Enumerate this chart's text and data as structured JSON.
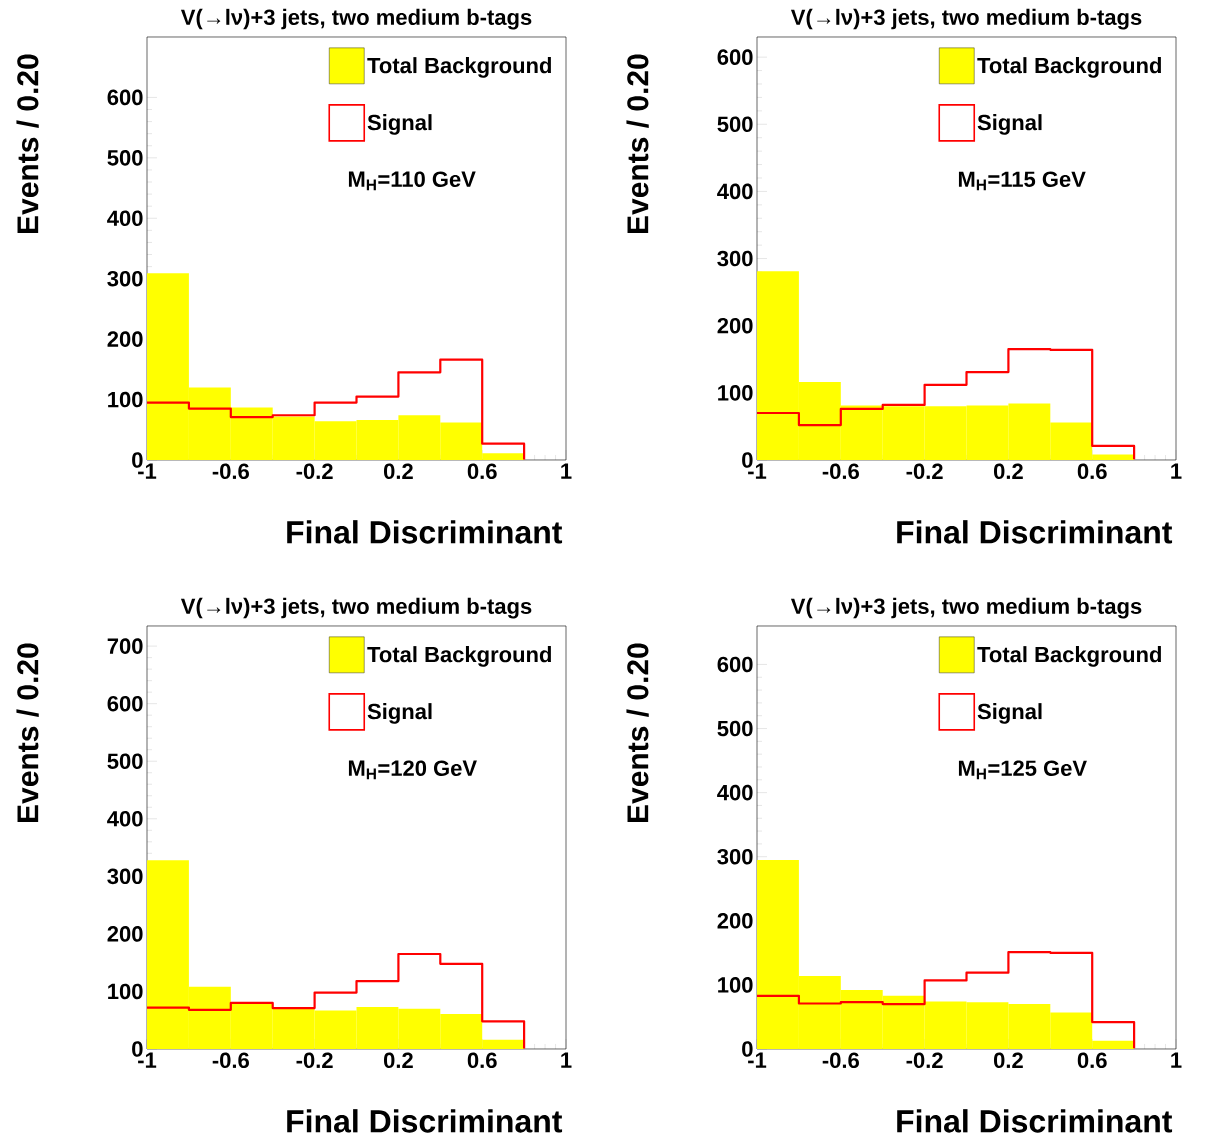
{
  "chart_data": [
    {
      "type": "histogram",
      "title": "V(→lν)+3 jets, two medium b-tags",
      "xlabel": "Final Discriminant",
      "ylabel": "Events / 0.20",
      "bins": [
        -1,
        -0.8,
        -0.6,
        -0.4,
        -0.2,
        0,
        0.2,
        0.4,
        0.6,
        0.8,
        1
      ],
      "series": [
        {
          "name": "Total Background",
          "type": "histogram",
          "color": "#ffff00",
          "values": [
            309,
            120,
            87,
            72,
            64,
            66,
            74,
            62,
            11,
            0
          ]
        },
        {
          "name": "Signal",
          "type": "step",
          "color": "#ff0000",
          "x": [
            -1,
            -0.8,
            -0.6,
            -0.4,
            -0.2,
            0,
            0.2,
            0.4,
            0.6,
            0.8
          ],
          "values": [
            95,
            85,
            71,
            74,
            95,
            105,
            145,
            166,
            27,
            1
          ]
        }
      ],
      "xlim": [
        -1,
        1
      ],
      "ylim": [
        0,
        700
      ],
      "xticks": [
        -1,
        -0.6,
        -0.2,
        0.2,
        0.6,
        1
      ],
      "yticks": [
        0,
        100,
        200,
        300,
        400,
        500,
        600
      ],
      "legend": "top right",
      "annotations": [
        "M$_{H}$=110 GeV"
      ]
    },
    {
      "type": "histogram",
      "title": "V(→lν)+3 jets, two medium b-tags",
      "xlabel": "Final Discriminant",
      "ylabel": "Events / 0.20",
      "bins": [
        -1,
        -0.8,
        -0.6,
        -0.4,
        -0.2,
        0,
        0.2,
        0.4,
        0.6,
        0.8,
        1
      ],
      "series": [
        {
          "name": "Total Background",
          "type": "histogram",
          "color": "#ffff00",
          "values": [
            281,
            116,
            81,
            80,
            80,
            81,
            84,
            56,
            8,
            0
          ]
        },
        {
          "name": "Signal",
          "type": "step",
          "color": "#ff0000",
          "x": [
            -1,
            -0.8,
            -0.6,
            -0.4,
            -0.2,
            0,
            0.2,
            0.4,
            0.6,
            0.8
          ],
          "values": [
            70,
            52,
            76,
            82,
            112,
            131,
            165,
            164,
            21,
            1
          ]
        }
      ],
      "xlim": [
        -1,
        1
      ],
      "ylim": [
        0,
        630
      ],
      "xticks": [
        -1,
        -0.6,
        -0.2,
        0.2,
        0.6,
        1
      ],
      "yticks": [
        0,
        100,
        200,
        300,
        400,
        500,
        600
      ],
      "legend": "top right",
      "annotations": [
        "M$_{H}$=115 GeV"
      ]
    },
    {
      "type": "histogram",
      "title": "V(→lν)+3 jets, two medium b-tags",
      "xlabel": "Final Discriminant",
      "ylabel": "Events / 0.20",
      "bins": [
        -1,
        -0.8,
        -0.6,
        -0.4,
        -0.2,
        0,
        0.2,
        0.4,
        0.6,
        0.8,
        1
      ],
      "series": [
        {
          "name": "Total Background",
          "type": "histogram",
          "color": "#ffff00",
          "values": [
            328,
            108,
            79,
            70,
            67,
            73,
            70,
            61,
            16,
            0
          ]
        },
        {
          "name": "Signal",
          "type": "step",
          "color": "#ff0000",
          "x": [
            -1,
            -0.8,
            -0.6,
            -0.4,
            -0.2,
            0,
            0.2,
            0.4,
            0.6,
            0.8
          ],
          "values": [
            72,
            68,
            80,
            71,
            98,
            118,
            165,
            148,
            48,
            1
          ]
        }
      ],
      "xlim": [
        -1,
        1
      ],
      "ylim": [
        0,
        735
      ],
      "xticks": [
        -1,
        -0.6,
        -0.2,
        0.2,
        0.6,
        1
      ],
      "yticks": [
        0,
        100,
        200,
        300,
        400,
        500,
        600,
        700
      ],
      "legend": "top right",
      "annotations": [
        "M$_{H}$=120 GeV"
      ]
    },
    {
      "type": "histogram",
      "title": "V(→lν)+3 jets, two medium b-tags",
      "xlabel": "Final Discriminant",
      "ylabel": "Events / 0.20",
      "bins": [
        -1,
        -0.8,
        -0.6,
        -0.4,
        -0.2,
        0,
        0.2,
        0.4,
        0.6,
        0.8,
        1
      ],
      "series": [
        {
          "name": "Total Background",
          "type": "histogram",
          "color": "#ffff00",
          "values": [
            295,
            114,
            92,
            83,
            74,
            73,
            70,
            57,
            13,
            0
          ]
        },
        {
          "name": "Signal",
          "type": "step",
          "color": "#ff0000",
          "x": [
            -1,
            -0.8,
            -0.6,
            -0.4,
            -0.2,
            0,
            0.2,
            0.4,
            0.6,
            0.8
          ],
          "values": [
            83,
            71,
            73,
            70,
            107,
            119,
            151,
            150,
            42,
            1
          ]
        }
      ],
      "xlim": [
        -1,
        1
      ],
      "ylim": [
        0,
        660
      ],
      "xticks": [
        -1,
        -0.6,
        -0.2,
        0.2,
        0.6,
        1
      ],
      "yticks": [
        0,
        100,
        200,
        300,
        400,
        500,
        600
      ],
      "legend": "top right",
      "annotations": [
        "M$_{H}$=125 GeV"
      ]
    }
  ]
}
